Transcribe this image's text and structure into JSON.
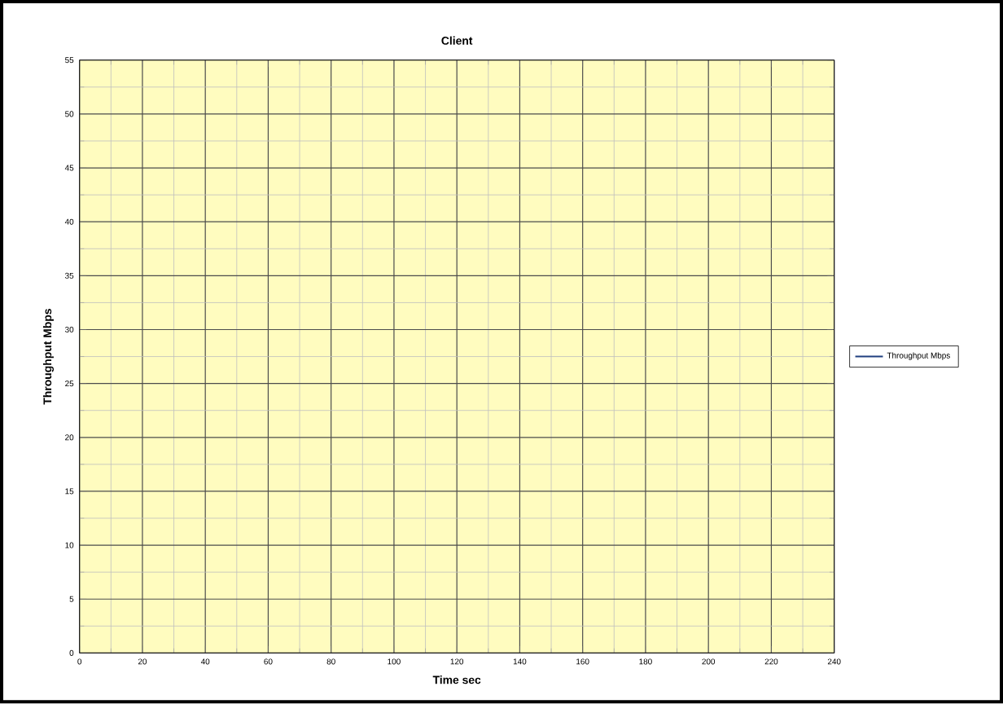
{
  "chart_data": {
    "type": "line",
    "title": "Client",
    "xlabel": "Time sec",
    "ylabel": "Throughput Mbps",
    "categories": [
      "0",
      "20",
      "40",
      "60",
      "80",
      "100",
      "120",
      "140",
      "160",
      "180",
      "200",
      "220",
      "240"
    ],
    "ylim": [
      0,
      55
    ],
    "yticks": [
      0,
      5,
      10,
      15,
      20,
      25,
      30,
      35,
      40,
      45,
      50,
      55
    ],
    "series": [
      {
        "name": "Throughput Mbps",
        "color": "#1f3f7f",
        "values": [
          null,
          null,
          null,
          null,
          null,
          null,
          null,
          null,
          null,
          null,
          null,
          null,
          null
        ]
      }
    ],
    "grid": true,
    "legend": "right"
  }
}
